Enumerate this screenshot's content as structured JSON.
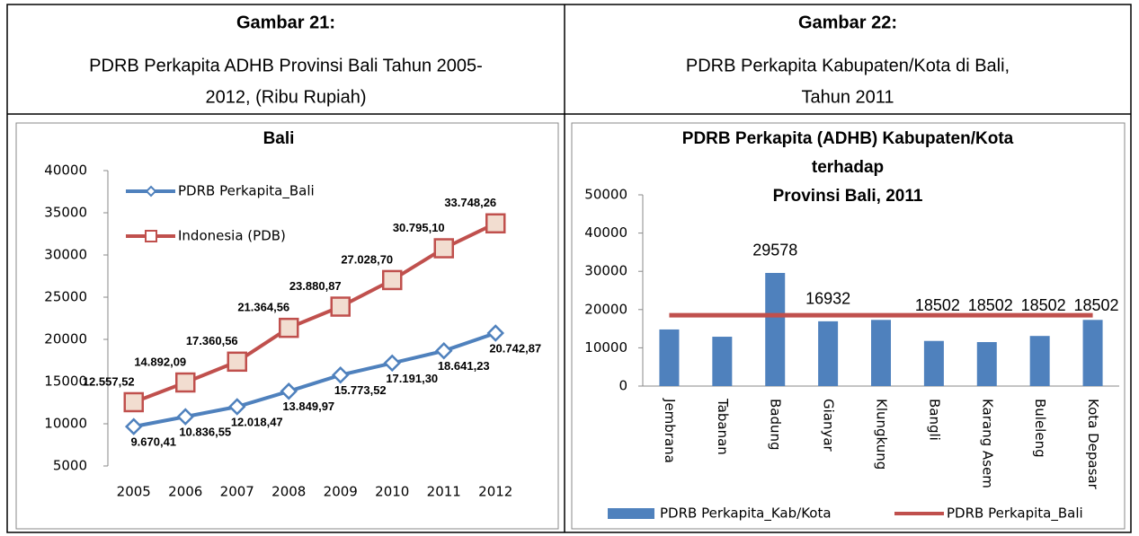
{
  "table": {
    "headers": [
      {
        "label": "Gambar 21:",
        "lines": [
          "PDRB Perkapita ADHB  Provinsi Bali Tahun 2005-",
          "2012, (Ribu Rupiah)"
        ]
      },
      {
        "label": "Gambar 22:",
        "lines": [
          "PDRB Perkapita Kabupaten/Kota di Bali,",
          "Tahun 2011"
        ]
      }
    ]
  },
  "chart_data": [
    {
      "type": "line",
      "title": [
        "Bali"
      ],
      "legend": "top-left",
      "categories": [
        "2005",
        "2006",
        "2007",
        "2008",
        "2009",
        "2010",
        "2011",
        "2012"
      ],
      "ylim": [
        5000,
        40000
      ],
      "yticks": [
        5000,
        10000,
        15000,
        20000,
        25000,
        30000,
        35000,
        40000
      ],
      "series": [
        {
          "name": "PDRB Perkapita_Bali",
          "color": "#4f81bd",
          "marker": "diamond",
          "values": [
            9670.41,
            10836.55,
            12018.47,
            13849.97,
            15773.52,
            17191.3,
            18641.23,
            20742.87
          ],
          "value_labels": [
            "9.670,41",
            "10.836,55",
            "12.018,47",
            "13.849,97",
            "15.773,52",
            "17.191,30",
            "18.641,23",
            "20.742,87"
          ]
        },
        {
          "name": "Indonesia (PDB)",
          "color": "#c0504d",
          "marker": "square",
          "values": [
            12557.52,
            14892.09,
            17360.56,
            21364.56,
            23880.87,
            27028.7,
            30795.1,
            33748.26
          ],
          "value_labels": [
            "12.557,52",
            "14.892,09",
            "17.360,56",
            "21.364,56",
            "23.880,87",
            "27.028,70",
            "30.795,10",
            "33.748,26"
          ]
        }
      ]
    },
    {
      "type": "bar",
      "title": [
        "PDRB Perkapita (ADHB) Kabupaten/Kota",
        "terhadap",
        "Provinsi  Bali, 2011"
      ],
      "legend": "bottom",
      "categories": [
        "Jembrana",
        "Tabanan",
        "Badung",
        "Gianyar",
        "Klungkung",
        "Bangli",
        "Karang Asem",
        "Buleleng",
        "Kota Depasar"
      ],
      "ylim": [
        0,
        50000
      ],
      "yticks": [
        0,
        10000,
        20000,
        30000,
        40000,
        50000
      ],
      "series": [
        {
          "name": "PDRB Perkapita_Kab/Kota",
          "color": "#4f81bd",
          "type": "bar",
          "values": [
            14800,
            12900,
            29578,
            16932,
            17300,
            11800,
            11500,
            13100,
            17300
          ],
          "value_labels": [
            null,
            null,
            "29578",
            "16932",
            null,
            null,
            null,
            null,
            null
          ]
        },
        {
          "name": "PDRB Perkapita_Bali",
          "color": "#c0504d",
          "type": "line",
          "values": [
            18502,
            18502,
            18502,
            18502,
            18502,
            18502,
            18502,
            18502,
            18502
          ],
          "value_labels": [
            null,
            null,
            null,
            null,
            null,
            "18502",
            "18502",
            "18502",
            "18502"
          ]
        }
      ]
    }
  ]
}
